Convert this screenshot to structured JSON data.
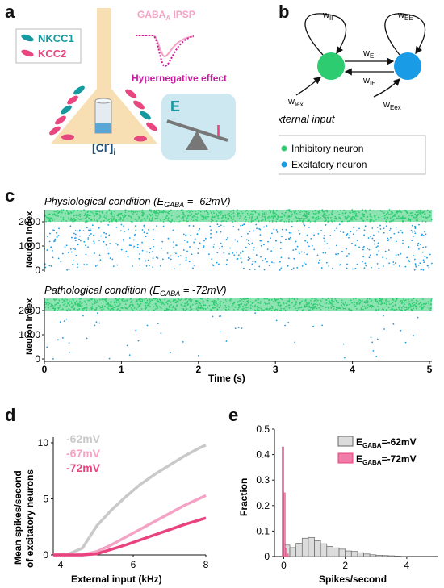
{
  "figure": {
    "panel_letters": [
      "a",
      "b",
      "c",
      "d",
      "e"
    ]
  },
  "panel_a": {
    "legend": [
      {
        "label": "NKCC1",
        "color": "#169aa0"
      },
      {
        "label": "KCC2",
        "color": "#e8467f"
      }
    ],
    "ipsp_label_main": "GABA",
    "ipsp_label_sub": "A",
    "ipsp_label_rest": " IPSP",
    "effect_label": "Hypernegative effect",
    "chloride_label": "[Cl",
    "chloride_sup": "-",
    "chloride_close": "]",
    "chloride_sub": "i",
    "seesaw_e": "E",
    "seesaw_i": "I"
  },
  "panel_b": {
    "self_ii": "w",
    "self_ii_sub": "II",
    "self_ee": "w",
    "self_ee_sub": "EE",
    "w_ei": "w",
    "w_ei_sub": "EI",
    "w_ie": "w",
    "w_ie_sub": "IE",
    "w_iex": "w",
    "w_iex_sub": "Iex",
    "w_eex": "w",
    "w_eex_sub": "Eex",
    "external_input": "External input",
    "legend_inhibitory": "Inhibitory neuron",
    "legend_excitatory": "Excitatory neuron",
    "inhibitory_color": "#2ecc71",
    "excitatory_color": "#1a9be6"
  },
  "panel_c": {
    "top_title_pre": "Physiological condition (E",
    "top_title_sub": "GABA",
    "top_title_post": " = -62mV)",
    "bottom_title_pre": "Pathological condition (E",
    "bottom_title_sub": "GABA",
    "bottom_title_post": " = -72mV)",
    "ylabel": "Neuron index",
    "yticks": [
      "2000",
      "1000",
      "0"
    ],
    "xlabel": "Time (s)",
    "xticks": [
      "0",
      "1",
      "2",
      "3",
      "4",
      "5"
    ]
  },
  "chart_data": [
    {
      "type": "line",
      "panel": "d",
      "xlabel": "External input (kHz)",
      "ylabel_line1": "Mean spikes/second",
      "ylabel_line2": "of excitatory neurons",
      "xlim": [
        3.8,
        8
      ],
      "ylim": [
        0,
        10.5
      ],
      "xticks": [
        "4",
        "6",
        "8"
      ],
      "yticks": [
        "0",
        "5",
        "10"
      ],
      "x": [
        3.8,
        4.2,
        4.6,
        5.0,
        5.4,
        5.8,
        6.2,
        6.6,
        7.0,
        7.4,
        7.8,
        8.0
      ],
      "series": [
        {
          "name": "-62mV",
          "color": "#c9c9c9",
          "values": [
            0.0,
            0.05,
            0.6,
            2.6,
            4.0,
            5.2,
            6.3,
            7.2,
            8.0,
            8.8,
            9.5,
            9.8
          ]
        },
        {
          "name": "-67mV",
          "color": "#f4a3c4",
          "values": [
            0.0,
            0.0,
            0.0,
            0.3,
            0.9,
            1.6,
            2.3,
            3.0,
            3.7,
            4.4,
            5.0,
            5.3
          ]
        },
        {
          "name": "-72mV",
          "color": "#e8437e",
          "values": [
            0.0,
            0.0,
            0.0,
            0.1,
            0.5,
            0.9,
            1.35,
            1.8,
            2.25,
            2.7,
            3.1,
            3.3
          ]
        }
      ]
    },
    {
      "type": "bar",
      "panel": "e",
      "xlabel": "Spikes/second",
      "ylabel": "Fraction",
      "xlim": [
        -0.3,
        5
      ],
      "ylim": [
        0,
        0.5
      ],
      "xticks": [
        "0",
        "2",
        "4"
      ],
      "yticks": [
        "0",
        "0.1",
        "0.2",
        "0.3",
        "0.4",
        "0.5"
      ],
      "series": [
        {
          "name_pre": "E",
          "name_sub": "GABA",
          "name_post": "=-62mV",
          "color": "#dcdcdc",
          "edge": "#666666",
          "bin_start": 0.0,
          "bin_width": 0.2,
          "values": [
            0.045,
            0.035,
            0.052,
            0.072,
            0.075,
            0.062,
            0.05,
            0.04,
            0.034,
            0.029,
            0.022,
            0.02,
            0.015,
            0.01,
            0.007,
            0.005,
            0.004,
            0.003,
            0.002,
            0.001
          ]
        },
        {
          "name_pre": "E",
          "name_sub": "GABA",
          "name_post": "=-72mV",
          "color": "#f07aa8",
          "edge": "#e8437e",
          "bin_start": -0.05,
          "bin_width": 0.05,
          "values": [
            0.43,
            0.25,
            0.03,
            0.01
          ]
        }
      ]
    }
  ]
}
